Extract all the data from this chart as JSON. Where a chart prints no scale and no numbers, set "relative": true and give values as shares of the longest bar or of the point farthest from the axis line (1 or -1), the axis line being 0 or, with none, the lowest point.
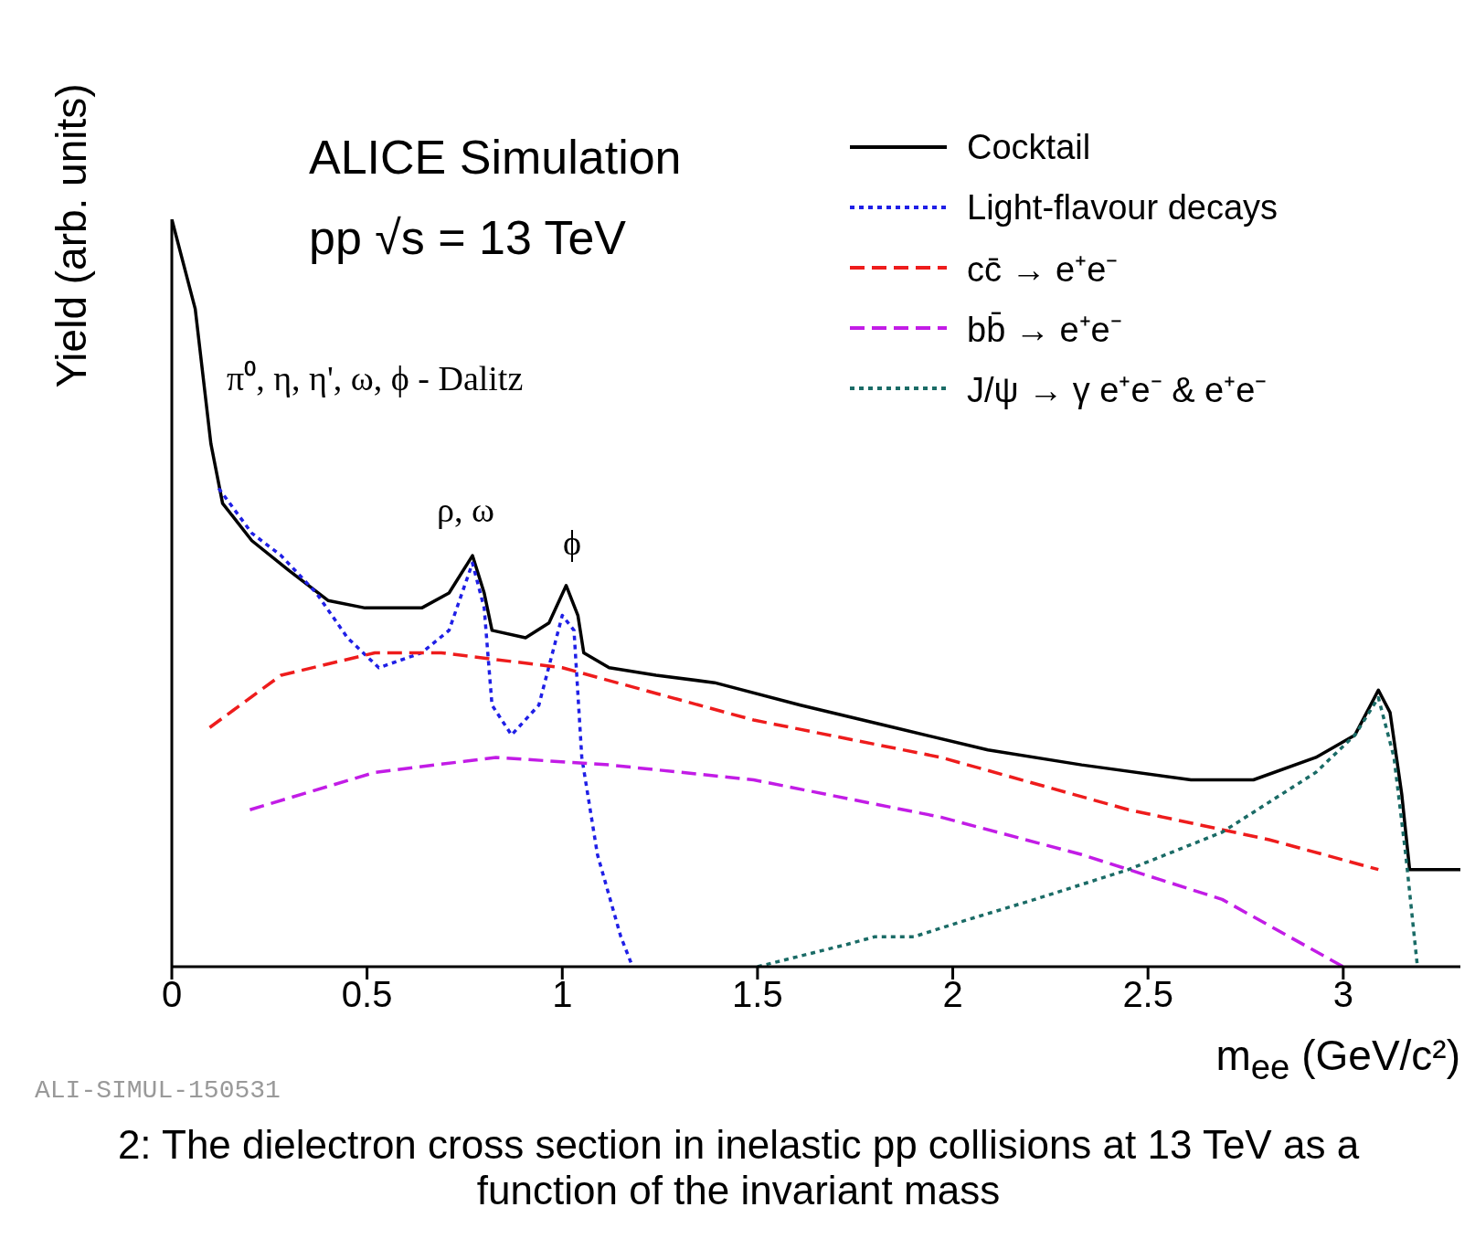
{
  "chart_data": {
    "type": "line",
    "title": "ALICE Simulation",
    "subtitle": "pp √s = 13 TeV",
    "xlabel": "m$_{ee}$ (GeV/c²)",
    "ylabel": "Yield (arb. units)",
    "relative": true,
    "xlim": [
      0,
      3.3
    ],
    "xticks": [
      0,
      0.5,
      1,
      1.5,
      2,
      2.5,
      3
    ],
    "legend": "top right",
    "series": [
      {
        "name": "Cocktail",
        "color": "#000000",
        "line_style": "solid",
        "x": [
          0,
          0.06,
          0.1,
          0.13,
          0.205,
          0.3,
          0.4,
          0.495,
          0.64,
          0.71,
          0.77,
          0.8,
          0.82,
          0.906,
          0.966,
          1.01,
          1.04,
          1.055,
          1.12,
          1.24,
          1.39,
          1.61,
          1.85,
          2.09,
          2.33,
          2.61,
          2.77,
          2.93,
          3.03,
          3.09,
          3.12,
          3.15,
          3.17,
          3.3
        ],
        "values": [
          1,
          0.88,
          0.7,
          0.62,
          0.57,
          0.53,
          0.49,
          0.48,
          0.48,
          0.5,
          0.55,
          0.5,
          0.45,
          0.44,
          0.46,
          0.51,
          0.47,
          0.42,
          0.4,
          0.39,
          0.38,
          0.35,
          0.32,
          0.29,
          0.27,
          0.25,
          0.25,
          0.28,
          0.31,
          0.37,
          0.34,
          0.23,
          0.13,
          0.13
        ]
      },
      {
        "name": "Light-flavour decays",
        "color": "#1f1fe6",
        "line_style": "dotted",
        "x": [
          0.12,
          0.205,
          0.28,
          0.37,
          0.45,
          0.53,
          0.64,
          0.71,
          0.77,
          0.8,
          0.82,
          0.87,
          0.94,
          1.0,
          1.03,
          1.05,
          1.09,
          1.15,
          1.18
        ],
        "values": [
          0.64,
          0.58,
          0.55,
          0.5,
          0.44,
          0.4,
          0.42,
          0.45,
          0.54,
          0.48,
          0.35,
          0.31,
          0.35,
          0.47,
          0.45,
          0.28,
          0.15,
          0.04,
          0
        ]
      },
      {
        "name": "cc̄ → e⁺e⁻",
        "color": "#ee1c1c",
        "line_style": "dashed",
        "x": [
          0.097,
          0.28,
          0.52,
          0.69,
          1.0,
          1.49,
          1.97,
          2.45,
          2.81,
          3.09
        ],
        "values": [
          0.32,
          0.39,
          0.42,
          0.42,
          0.4,
          0.33,
          0.28,
          0.21,
          0.17,
          0.13
        ]
      },
      {
        "name": "bb̄ → e⁺e⁻",
        "color": "#c21ce6",
        "line_style": "dashed",
        "x": [
          0.2,
          0.52,
          0.83,
          1.12,
          1.49,
          1.97,
          2.33,
          2.69,
          3.0
        ],
        "values": [
          0.21,
          0.26,
          0.28,
          0.27,
          0.25,
          0.2,
          0.15,
          0.09,
          0
        ]
      },
      {
        "name": "J/ψ → γ e⁺e⁻ & e⁺e⁻",
        "color": "#1a6b66",
        "line_style": "dotted",
        "x": [
          1.5,
          1.73,
          1.8,
          1.9,
          2.02,
          2.21,
          2.45,
          2.69,
          2.93,
          3.03,
          3.09,
          3.13,
          3.16,
          3.19
        ],
        "values": [
          0,
          0.03,
          0.04,
          0.04,
          0.06,
          0.09,
          0.13,
          0.18,
          0.26,
          0.31,
          0.36,
          0.28,
          0.15,
          0
        ]
      }
    ],
    "annotations": [
      "π⁰, η, η', ω, ϕ - Dalitz",
      "ρ, ω",
      "ϕ",
      "ALI-SIMUL-150531",
      "2: The dielectron cross section in inelastic pp collisions at 13 TeV as a function of the invariant mass"
    ]
  }
}
